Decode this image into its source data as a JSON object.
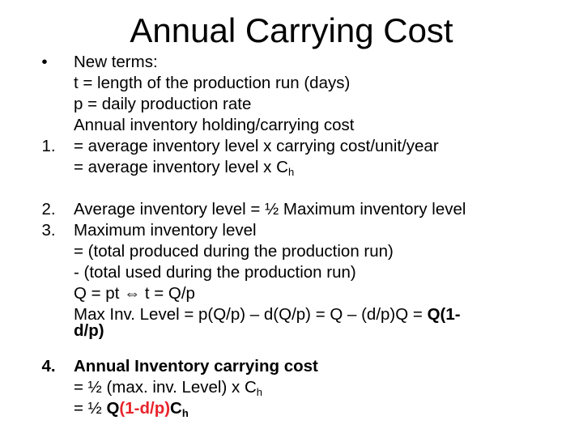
{
  "slide": {
    "title": "Annual Carrying Cost"
  },
  "markers": {
    "bullet": "•",
    "m1": "1.",
    "m2": "2.",
    "m3": "3.",
    "m4": "4."
  },
  "lines": {
    "l01": "New terms:",
    "l02": "t = length of the production run (days)",
    "l03": "p = daily production rate",
    "l04": "Annual inventory holding/carrying cost",
    "l05": "= average inventory level x carrying cost/unit/year",
    "l06_a": "= average inventory level x C",
    "l06_sub": "h",
    "l07": "Average inventory level = ½ Maximum inventory level",
    "l08": "Maximum inventory level",
    "l09": "= (total produced during the production run)",
    "l10": "-  (total used during the production run)",
    "l11_a": "Q = pt",
    "l11_arrow": "⇔",
    "l11_b": "t = Q/p",
    "l12_a": "Max Inv. Level = p(Q/p) – d(Q/p) = Q – (d/p)Q = ",
    "l12_b": "Q(1-",
    "l13": "d/p)",
    "l14": "Annual Inventory carrying cost",
    "l15_a": "= ½ (max. inv. Level) x C",
    "l15_sub": "h",
    "l16_a": "= ½ ",
    "l16_b": "Q",
    "l16_c": "(1-d/p)",
    "l16_d": "C",
    "l16_sub": "h"
  }
}
